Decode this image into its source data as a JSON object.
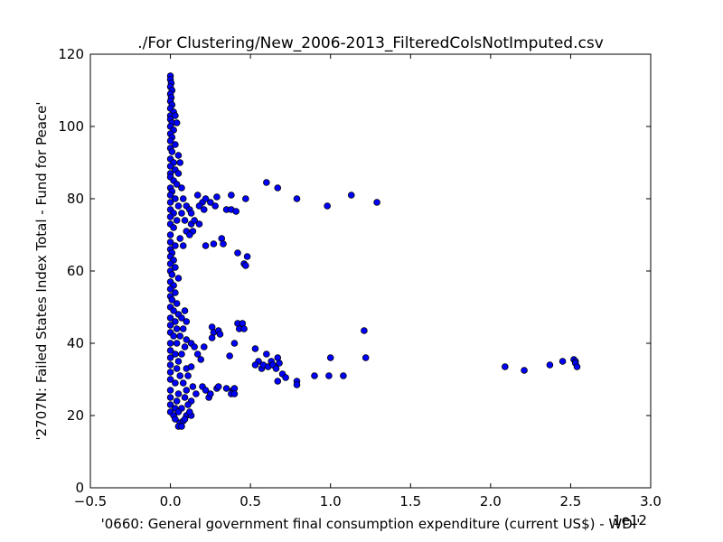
{
  "chart_data": {
    "type": "scatter",
    "title": "./For Clustering/New_2006-2013_FilteredColsNotImputed.csv",
    "xlabel": "'0660: General government final consumption expenditure  (current US$) - WDI'",
    "ylabel": "'2707N: Failed States Index Total - Fund for Peace'",
    "x_offset_label": "1e12",
    "xlim": [
      -0.5,
      3.0
    ],
    "ylim": [
      0,
      120
    ],
    "xticks": [
      -0.5,
      0.0,
      0.5,
      1.0,
      1.5,
      2.0,
      2.5,
      3.0
    ],
    "xtick_labels": [
      "−0.5",
      "0.0",
      "0.5",
      "1.0",
      "1.5",
      "2.0",
      "2.5",
      "3.0"
    ],
    "yticks": [
      0,
      20,
      40,
      60,
      80,
      100,
      120
    ],
    "ytick_labels": [
      "0",
      "20",
      "40",
      "60",
      "80",
      "100",
      "120"
    ],
    "grid": false,
    "marker_color": "#0000ff",
    "series": [
      {
        "points": [
          [
            0.0,
            114
          ],
          [
            0.0,
            113
          ],
          [
            0.005,
            112
          ],
          [
            0.0,
            111
          ],
          [
            0.01,
            110
          ],
          [
            0.0,
            109
          ],
          [
            0.005,
            108
          ],
          [
            0.0,
            107
          ],
          [
            0.01,
            106
          ],
          [
            0.0,
            105
          ],
          [
            0.02,
            104
          ],
          [
            0.0,
            103
          ],
          [
            0.03,
            103
          ],
          [
            0.0,
            102
          ],
          [
            0.01,
            101
          ],
          [
            0.04,
            101
          ],
          [
            0.0,
            100
          ],
          [
            0.02,
            99
          ],
          [
            0.0,
            98
          ],
          [
            0.01,
            97
          ],
          [
            0.0,
            96
          ],
          [
            0.03,
            95
          ],
          [
            0.0,
            94
          ],
          [
            0.01,
            93
          ],
          [
            0.05,
            92
          ],
          [
            0.0,
            91
          ],
          [
            0.02,
            90
          ],
          [
            0.06,
            90
          ],
          [
            0.0,
            89
          ],
          [
            0.03,
            88
          ],
          [
            0.0,
            87
          ],
          [
            0.05,
            87
          ],
          [
            0.0,
            86
          ],
          [
            0.02,
            85
          ],
          [
            0.04,
            84
          ],
          [
            0.0,
            83
          ],
          [
            0.07,
            83
          ],
          [
            0.01,
            82
          ],
          [
            0.0,
            81
          ],
          [
            0.03,
            80
          ],
          [
            0.08,
            80
          ],
          [
            0.0,
            79
          ],
          [
            0.05,
            78
          ],
          [
            0.1,
            78
          ],
          [
            0.0,
            77
          ],
          [
            0.02,
            76
          ],
          [
            0.07,
            76
          ],
          [
            0.12,
            77
          ],
          [
            0.0,
            75
          ],
          [
            0.04,
            74
          ],
          [
            0.09,
            74
          ],
          [
            0.0,
            73
          ],
          [
            0.13,
            73
          ],
          [
            0.02,
            72
          ],
          [
            0.1,
            71
          ],
          [
            0.0,
            70
          ],
          [
            0.06,
            69
          ],
          [
            0.0,
            68
          ],
          [
            0.03,
            67
          ],
          [
            0.08,
            67
          ],
          [
            0.0,
            66
          ],
          [
            0.01,
            65
          ],
          [
            0.0,
            64
          ],
          [
            0.02,
            63
          ],
          [
            0.0,
            62
          ],
          [
            0.03,
            61
          ],
          [
            0.0,
            60
          ],
          [
            0.01,
            59
          ],
          [
            0.05,
            58
          ],
          [
            0.0,
            57
          ],
          [
            0.02,
            56
          ],
          [
            0.0,
            55
          ],
          [
            0.03,
            54
          ],
          [
            0.0,
            53
          ],
          [
            0.01,
            52
          ],
          [
            0.04,
            51
          ],
          [
            0.0,
            50
          ],
          [
            0.02,
            49
          ],
          [
            0.05,
            48
          ],
          [
            0.09,
            49
          ],
          [
            0.0,
            47
          ],
          [
            0.03,
            46
          ],
          [
            0.07,
            47
          ],
          [
            0.1,
            46
          ],
          [
            0.0,
            45
          ],
          [
            0.04,
            44
          ],
          [
            0.08,
            44
          ],
          [
            0.0,
            43
          ],
          [
            0.02,
            42
          ],
          [
            0.06,
            42
          ],
          [
            0.1,
            41
          ],
          [
            0.0,
            40
          ],
          [
            0.04,
            40
          ],
          [
            0.09,
            39
          ],
          [
            0.13,
            40
          ],
          [
            0.15,
            39
          ],
          [
            0.0,
            38
          ],
          [
            0.03,
            37
          ],
          [
            0.07,
            37
          ],
          [
            0.17,
            37
          ],
          [
            0.0,
            36
          ],
          [
            0.05,
            35
          ],
          [
            0.19,
            35.5
          ],
          [
            0.0,
            34
          ],
          [
            0.04,
            33
          ],
          [
            0.1,
            33
          ],
          [
            0.13,
            33.5
          ],
          [
            0.0,
            32
          ],
          [
            0.06,
            31
          ],
          [
            0.11,
            31
          ],
          [
            0.0,
            30
          ],
          [
            0.03,
            29
          ],
          [
            0.08,
            29
          ],
          [
            0.14,
            28
          ],
          [
            0.2,
            28
          ],
          [
            0.0,
            27
          ],
          [
            0.05,
            26
          ],
          [
            0.1,
            27
          ],
          [
            0.16,
            26
          ],
          [
            0.22,
            27
          ],
          [
            0.0,
            25
          ],
          [
            0.04,
            24
          ],
          [
            0.09,
            25
          ],
          [
            0.13,
            24
          ],
          [
            0.0,
            23
          ],
          [
            0.03,
            22
          ],
          [
            0.07,
            22
          ],
          [
            0.11,
            23
          ],
          [
            0.0,
            21
          ],
          [
            0.02,
            20
          ],
          [
            0.05,
            21
          ],
          [
            0.1,
            20
          ],
          [
            0.13,
            20
          ],
          [
            0.03,
            19
          ],
          [
            0.06,
            18
          ],
          [
            0.08,
            18.5
          ],
          [
            0.05,
            17
          ],
          [
            0.07,
            17
          ],
          [
            0.09,
            19
          ],
          [
            0.12,
            21
          ],
          [
            0.17,
            81
          ],
          [
            0.2,
            79
          ],
          [
            0.22,
            80
          ],
          [
            0.25,
            79
          ],
          [
            0.29,
            80.5
          ],
          [
            0.38,
            81
          ],
          [
            0.47,
            80
          ],
          [
            0.18,
            78
          ],
          [
            0.21,
            77
          ],
          [
            0.28,
            78
          ],
          [
            0.35,
            77
          ],
          [
            0.38,
            77
          ],
          [
            0.41,
            76.5
          ],
          [
            0.13,
            76
          ],
          [
            0.15,
            74
          ],
          [
            0.18,
            73
          ],
          [
            0.14,
            71
          ],
          [
            0.12,
            70
          ],
          [
            0.22,
            67
          ],
          [
            0.27,
            67.5
          ],
          [
            0.32,
            69
          ],
          [
            0.33,
            67.5
          ],
          [
            0.42,
            65
          ],
          [
            0.48,
            64
          ],
          [
            0.46,
            62
          ],
          [
            0.47,
            61.5
          ],
          [
            0.6,
            84.5
          ],
          [
            0.67,
            83
          ],
          [
            0.79,
            80
          ],
          [
            0.98,
            78
          ],
          [
            1.13,
            81
          ],
          [
            1.29,
            79
          ],
          [
            0.26,
            44.5
          ],
          [
            0.27,
            43
          ],
          [
            0.3,
            43.5
          ],
          [
            0.31,
            42.5
          ],
          [
            0.26,
            41.5
          ],
          [
            0.42,
            45.5
          ],
          [
            0.45,
            45.5
          ],
          [
            0.43,
            44
          ],
          [
            0.46,
            44
          ],
          [
            0.4,
            40
          ],
          [
            0.21,
            39
          ],
          [
            0.37,
            36.5
          ],
          [
            1.21,
            43.5
          ],
          [
            0.53,
            38.5
          ],
          [
            0.6,
            37
          ],
          [
            0.63,
            35
          ],
          [
            0.67,
            36
          ],
          [
            0.55,
            35
          ],
          [
            0.57,
            33
          ],
          [
            0.53,
            34
          ],
          [
            0.58,
            34
          ],
          [
            0.61,
            33.5
          ],
          [
            0.64,
            34
          ],
          [
            0.66,
            33
          ],
          [
            0.68,
            34.5
          ],
          [
            0.7,
            31.5
          ],
          [
            0.72,
            30.5
          ],
          [
            0.67,
            29.5
          ],
          [
            0.79,
            29.5
          ],
          [
            0.79,
            28.5
          ],
          [
            0.9,
            31
          ],
          [
            0.99,
            31
          ],
          [
            1.0,
            36
          ],
          [
            1.08,
            31
          ],
          [
            1.22,
            36
          ],
          [
            0.24,
            25
          ],
          [
            0.25,
            26
          ],
          [
            0.29,
            27.5
          ],
          [
            0.3,
            28
          ],
          [
            0.35,
            27.5
          ],
          [
            0.39,
            27
          ],
          [
            0.4,
            27.5
          ],
          [
            0.38,
            26
          ],
          [
            0.4,
            26
          ],
          [
            2.09,
            33.5
          ],
          [
            2.21,
            32.5
          ],
          [
            2.37,
            34
          ],
          [
            2.45,
            35
          ],
          [
            2.52,
            35.5
          ],
          [
            2.53,
            35
          ],
          [
            2.53,
            34.5
          ],
          [
            2.54,
            33.5
          ]
        ]
      }
    ]
  }
}
